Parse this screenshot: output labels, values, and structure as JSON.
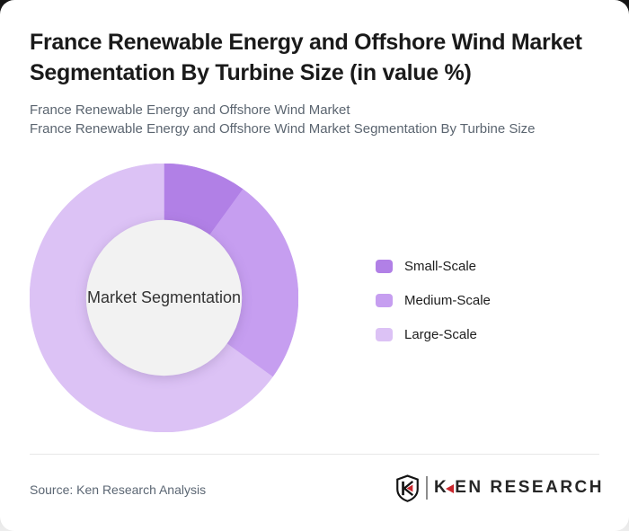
{
  "header": {
    "title": "France Renewable Energy and Offshore Wind Market Segmentation By Turbine Size (in value %)",
    "subtitle_line1": "France Renewable Energy and Offshore Wind Market",
    "subtitle_line2": "France Renewable Energy and Offshore Wind Market Segmentation By Turbine Size"
  },
  "chart_data": {
    "type": "pie",
    "subtype": "donut",
    "title": "France Renewable Energy and Offshore Wind Market Segmentation By Turbine Size (in value %)",
    "center_label": "Market Segmentation",
    "categories": [
      "Small-Scale",
      "Medium-Scale",
      "Large-Scale"
    ],
    "values": [
      10,
      25,
      65
    ],
    "unit": "%",
    "colors": [
      "#b180e6",
      "#c69ef0",
      "#dcc2f5"
    ],
    "inner_circle_color": "#f2f2f2",
    "start_angle_deg": 0,
    "direction": "clockwise",
    "inner_radius_ratio": 0.58,
    "legend_position": "right",
    "data_labels_shown": false
  },
  "footer": {
    "source_text": "Source: Ken Research Analysis",
    "logo": {
      "badge_letter": "K",
      "wordmark_first_letter": "K",
      "wordmark_rest": "EN RESEARCH",
      "accent_red": "#c9252c"
    }
  },
  "theme": {
    "card_background": "#ffffff",
    "title_color": "#1a1a1a",
    "subtitle_color": "#5b6570",
    "legend_text_color": "#1d1d1d",
    "divider_color": "#e7e7e7",
    "source_text_color": "#5b6673"
  }
}
